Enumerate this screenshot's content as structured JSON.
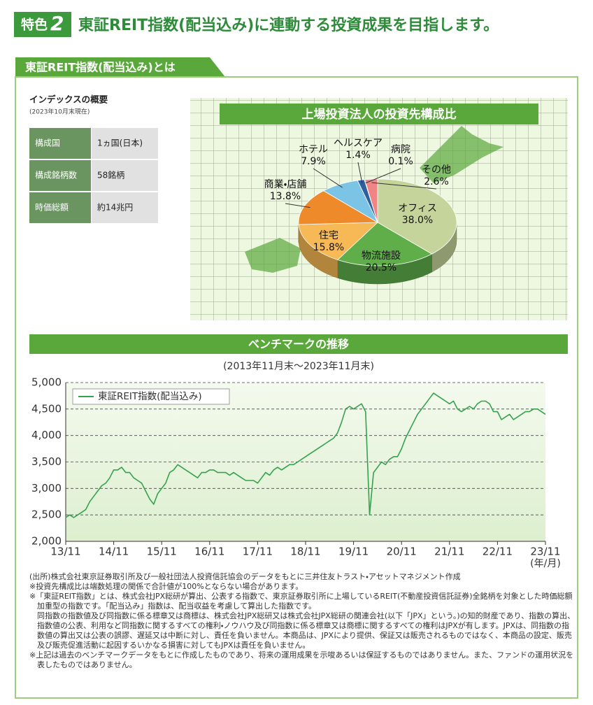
{
  "header": {
    "badge": "特色",
    "badge_number": "2",
    "title": "東証REIT指数(配当込み)に連動する投資成果を目指します。"
  },
  "section_title": "東証REIT指数(配当込み)とは",
  "overview": {
    "title": "インデックスの概要",
    "date": "(2023年10月末現在)",
    "rows": [
      [
        "構成国",
        "1ヵ国(日本)"
      ],
      [
        "構成銘柄数",
        "58銘柄"
      ],
      [
        "時価総額",
        "約14兆円"
      ]
    ]
  },
  "chart_data": [
    {
      "type": "pie",
      "title": "上場投資法人の投資先構成比",
      "categories": [
        "オフィス",
        "物流施設",
        "住宅",
        "商業・店舗",
        "ホテル",
        "ヘルスケア",
        "病院",
        "その他"
      ],
      "values": [
        38.0,
        20.5,
        15.8,
        13.8,
        7.9,
        1.4,
        0.1,
        2.6
      ],
      "value_labels": [
        "38.0%",
        "20.5%",
        "15.8%",
        "13.8%",
        "7.9%",
        "1.4%",
        "0.1%",
        "2.6%"
      ],
      "colors": [
        "#c5d49a",
        "#5fae4a",
        "#f7b955",
        "#ef8a2a",
        "#7cc4e6",
        "#2f5f9e",
        "#9a9a9a",
        "#ef8585"
      ]
    },
    {
      "type": "line",
      "title": "ベンチマークの推移",
      "subtitle": "(2013年11月末～2023年11月末)",
      "xlabel": "(年/月)",
      "categories": [
        "13/11",
        null,
        null,
        null,
        null,
        null,
        null,
        null,
        null,
        null,
        null,
        null,
        "14/11",
        null,
        null,
        null,
        null,
        null,
        null,
        null,
        null,
        null,
        null,
        null,
        "15/11",
        null,
        null,
        null,
        null,
        null,
        null,
        null,
        null,
        null,
        null,
        null,
        "16/11",
        null,
        null,
        null,
        null,
        null,
        null,
        null,
        null,
        null,
        null,
        null,
        "17/11",
        null,
        null,
        null,
        null,
        null,
        null,
        null,
        null,
        null,
        null,
        null,
        "18/11",
        null,
        null,
        null,
        null,
        null,
        null,
        null,
        null,
        null,
        null,
        null,
        "19/11",
        null,
        null,
        null,
        null,
        null,
        null,
        null,
        null,
        null,
        null,
        null,
        "20/11",
        null,
        null,
        null,
        null,
        null,
        null,
        null,
        null,
        null,
        null,
        null,
        "21/11",
        null,
        null,
        null,
        null,
        null,
        null,
        null,
        null,
        null,
        null,
        null,
        "22/11",
        null,
        null,
        null,
        null,
        null,
        null,
        null,
        null,
        null,
        null,
        null,
        "23/11"
      ],
      "series": [
        {
          "name": "東証REIT指数(配当込み)",
          "color": "#35a24e",
          "values": [
            2450,
            2500,
            2450,
            2500,
            2550,
            2600,
            2750,
            2850,
            2950,
            3050,
            3100,
            3200,
            3350,
            3350,
            3400,
            3300,
            3300,
            3200,
            3150,
            3100,
            2950,
            2800,
            2700,
            2900,
            3000,
            3100,
            3300,
            3350,
            3450,
            3400,
            3350,
            3300,
            3250,
            3200,
            3300,
            3300,
            3350,
            3350,
            3300,
            3300,
            3300,
            3250,
            3300,
            3250,
            3200,
            3150,
            3150,
            3150,
            3100,
            3200,
            3300,
            3250,
            3350,
            3400,
            3350,
            3400,
            3450,
            3450,
            3500,
            3550,
            3600,
            3650,
            3700,
            3750,
            3800,
            3850,
            3900,
            3950,
            4050,
            4250,
            4500,
            4550,
            4500,
            4550,
            4600,
            4450,
            2500,
            3300,
            3400,
            3500,
            3450,
            3550,
            3600,
            3600,
            3750,
            3950,
            4100,
            4250,
            4400,
            4500,
            4600,
            4700,
            4800,
            4750,
            4700,
            4650,
            4600,
            4650,
            4500,
            4450,
            4500,
            4550,
            4500,
            4600,
            4650,
            4650,
            4600,
            4450,
            4450,
            4300,
            4350,
            4400,
            4300,
            4350,
            4400,
            4450,
            4450,
            4500,
            4500,
            4450,
            4400
          ]
        }
      ],
      "ylim": [
        2000,
        5000
      ],
      "yticks": [
        {
          "value": 2000,
          "label": "2,000"
        },
        {
          "value": 2500,
          "label": "2,500"
        },
        {
          "value": 3000,
          "label": "3,000"
        },
        {
          "value": 3500,
          "label": "3,500"
        },
        {
          "value": 4000,
          "label": "4,000"
        },
        {
          "value": 4500,
          "label": "4,500"
        },
        {
          "value": 5000,
          "label": "5,000"
        }
      ],
      "grid": true,
      "legend": "top-left"
    }
  ],
  "notes": [
    "(出所)株式会社東京証券取引所及び一般社団法人投資信託協会のデータをもとに三井住友トラスト・アセットマネジメント作成",
    "※投資先構成比は端数処理の関係で合計値が100%とならない場合があります。",
    "※「東証REIT指数」とは、株式会社JPX総研が算出、公表する指数で、東京証券取引所に上場しているREIT(不動産投資信託証券)全銘柄を対象とした時価総額加重型の指数です。「配当込み」指数は、配当収益を考慮して算出した指数です。",
    "同指数の指数値及び同指数に係る標章又は商標は、株式会社JPX総研又は株式会社JPX総研の関連会社(以下「JPX」という。)の知的財産であり、指数の算出、指数値の公表、利用など同指数に関するすべての権利・ノウハウ及び同指数に係る標章又は商標に関するすべての権利はJPXが有します。JPXは、同指数の指数値の算出又は公表の誤謬、遅延又は中断に対し、責任を負いません。本商品は、JPXにより提供、保証又は販売されるものではなく、本商品の設定、販売及び販売促進活動に起因するいかなる損害に対してもJPXは責任を負いません。",
    "※上記は過去のベンチマークデータをもとに作成したものであり、将来の運用成果を示唆あるいは保証するものではありません。また、ファンドの運用状況を表したものではありません。"
  ]
}
